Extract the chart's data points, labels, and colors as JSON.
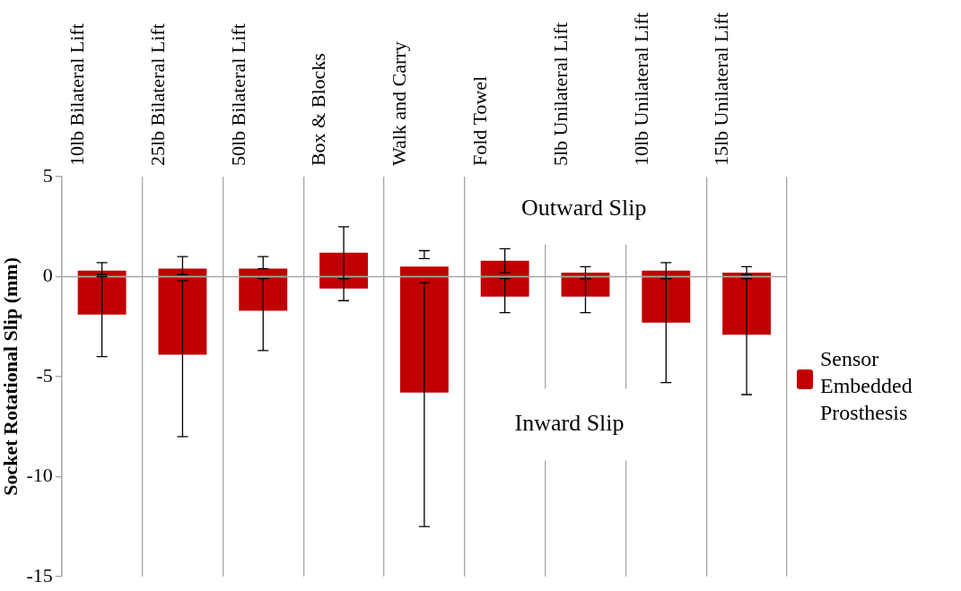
{
  "chart_data": {
    "type": "bar",
    "ylabel": "Socket Rotational Slip (mm)",
    "categories": [
      "10lb Bilateral Lift",
      "25lb Bilateral Lift",
      "50lb Bilateral Lift",
      "Box & Blocks",
      "Walk and Carry",
      "Fold Towel",
      "5lb Unilateral Lift",
      "10lb Unilateral Lift",
      "15lb Unilateral Lift"
    ],
    "series": [
      {
        "name": "Sensor Embedded Prosthesis",
        "color": "#c00000",
        "values": [
          0.3,
          0.4,
          0.4,
          1.2,
          0.5,
          0.8,
          0.2,
          0.3,
          0.2
        ],
        "errors": [
          [
            0.1,
            0.7
          ],
          [
            0.1,
            1.0
          ],
          [
            0.4,
            1.0
          ],
          [
            -0.1,
            2.5
          ],
          [
            0.9,
            1.3
          ],
          [
            0.2,
            1.4
          ],
          [
            -0.1,
            0.5
          ],
          [
            -0.1,
            0.7
          ],
          [
            0.1,
            0.5
          ]
        ]
      },
      {
        "color": "#c00000",
        "values": [
          -1.9,
          -3.9,
          -1.7,
          -0.6,
          -5.8,
          -1.0,
          -1.0,
          -2.3,
          -2.9
        ],
        "errors": [
          [
            -4.0,
            0
          ],
          [
            -8.0,
            -0.2
          ],
          [
            -3.7,
            -0.1
          ],
          [
            -1.2,
            -0.1
          ],
          [
            -12.5,
            -0.3
          ],
          [
            -1.8,
            -0.1
          ],
          [
            -1.8,
            -0.1
          ],
          [
            -5.3,
            -0.1
          ],
          [
            -5.9,
            -0.1
          ]
        ]
      }
    ],
    "stacked": true,
    "ylim": [
      -15,
      5
    ],
    "yticks": [
      -15,
      -10,
      -5,
      0,
      5
    ],
    "grid": "x",
    "ref_lines": [
      {
        "axis": "y",
        "value": 0,
        "color": "#a6a6a6"
      }
    ],
    "annotations": [
      "Outward Slip",
      "Inward Slip"
    ],
    "legend": "right"
  }
}
